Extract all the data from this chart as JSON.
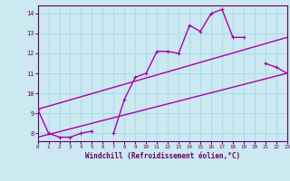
{
  "xlabel": "Windchill (Refroidissement éolien,°C)",
  "background_color": "#cce8f0",
  "line_color": "#aa00aa",
  "grid_color": "#aaddee",
  "x_data": [
    0,
    1,
    2,
    3,
    4,
    5,
    6,
    7,
    8,
    9,
    10,
    11,
    12,
    13,
    14,
    15,
    16,
    17,
    18,
    19,
    20,
    21,
    22,
    23
  ],
  "y_main": [
    9.2,
    8.0,
    7.8,
    7.8,
    8.0,
    8.1,
    null,
    8.0,
    9.7,
    10.8,
    11.0,
    12.1,
    12.1,
    12.0,
    13.4,
    13.1,
    14.0,
    14.2,
    12.8,
    12.8,
    null,
    11.5,
    11.3,
    11.0
  ],
  "y_trend1_x": [
    0,
    23
  ],
  "y_trend1_y": [
    7.8,
    11.0
  ],
  "y_trend2_x": [
    0,
    23
  ],
  "y_trend2_y": [
    9.2,
    12.8
  ],
  "xlim": [
    0,
    23
  ],
  "ylim": [
    7.6,
    14.4
  ],
  "yticks": [
    8,
    9,
    10,
    11,
    12,
    13,
    14
  ],
  "xticks": [
    0,
    1,
    2,
    3,
    4,
    5,
    6,
    7,
    8,
    9,
    10,
    11,
    12,
    13,
    14,
    15,
    16,
    17,
    18,
    19,
    20,
    21,
    22,
    23
  ]
}
